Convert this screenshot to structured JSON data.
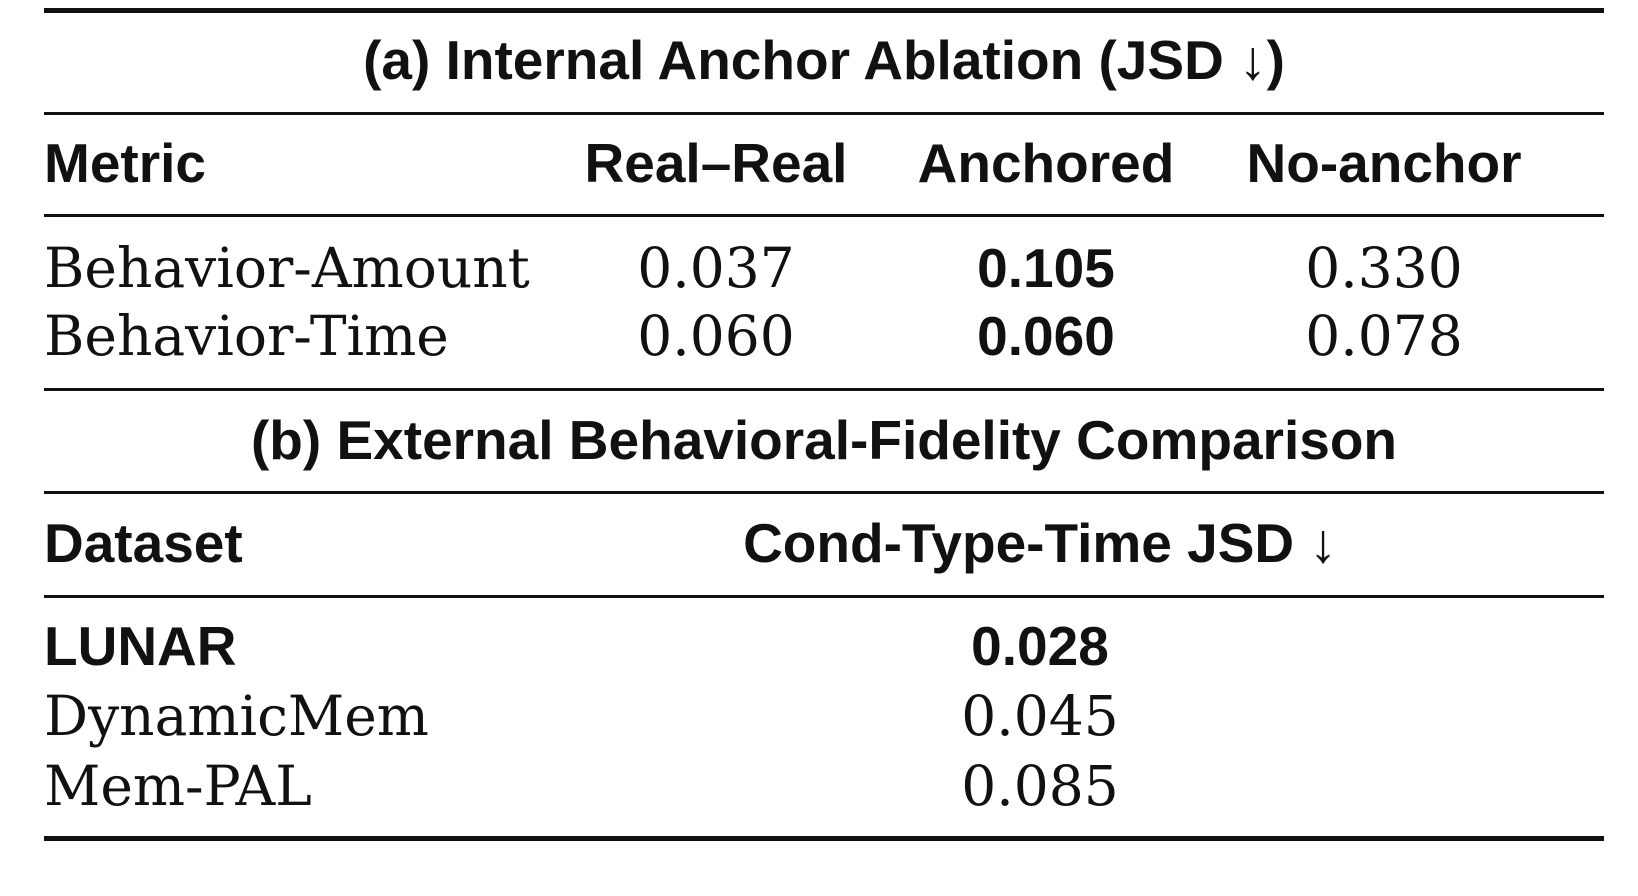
{
  "section_a": {
    "title": "(a) Internal Anchor Ablation (JSD ↓)",
    "headers": [
      "Metric",
      "Real–Real",
      "Anchored",
      "No-anchor"
    ],
    "rows": [
      {
        "metric": "Behavior-Amount",
        "real_real": "0.037",
        "anchored": "0.105",
        "no_anchor": "0.330"
      },
      {
        "metric": "Behavior-Time",
        "real_real": "0.060",
        "anchored": "0.060",
        "no_anchor": "0.078"
      }
    ]
  },
  "section_b": {
    "title": "(b) External Behavioral-Fidelity Comparison",
    "headers": [
      "Dataset",
      "Cond-Type-Time JSD ↓"
    ],
    "rows": [
      {
        "dataset": "LUNAR",
        "value": "0.028"
      },
      {
        "dataset": "DynamicMem",
        "value": "0.045"
      },
      {
        "dataset": "Mem-PAL",
        "value": "0.085"
      }
    ]
  }
}
